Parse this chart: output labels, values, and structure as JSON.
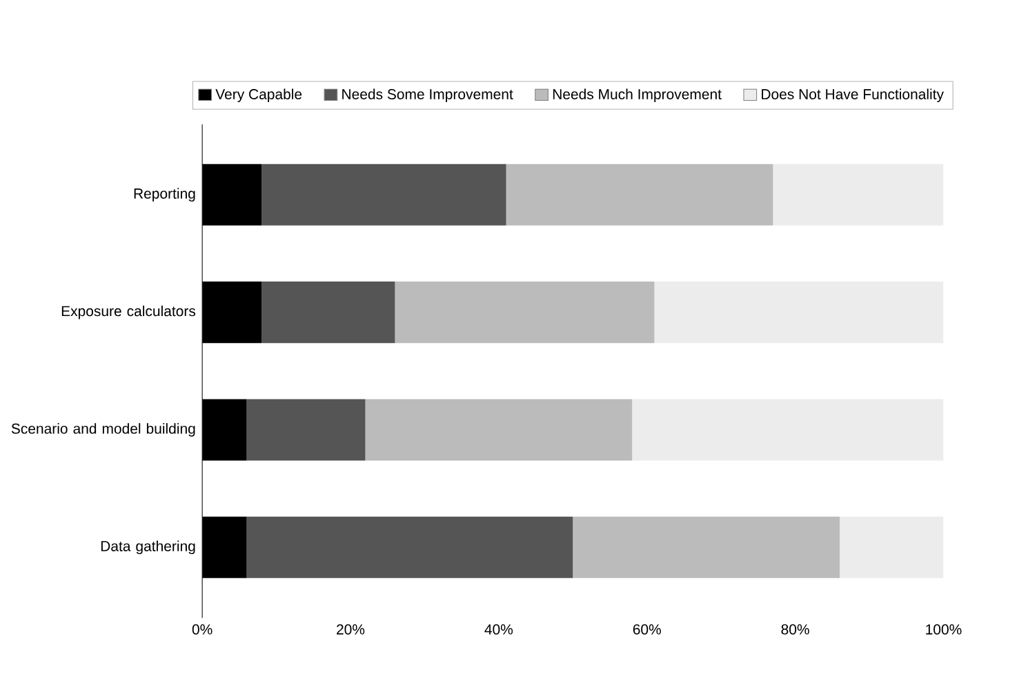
{
  "chart_data": {
    "type": "bar",
    "orientation": "horizontal",
    "stacked": true,
    "categories": [
      "Reporting",
      "Exposure calculators",
      "Scenario and model building",
      "Data gathering"
    ],
    "series": [
      {
        "name": "Very Capable",
        "color": "#000000",
        "values": [
          8,
          8,
          6,
          6
        ]
      },
      {
        "name": "Needs Some Improvement",
        "color": "#555555",
        "values": [
          33,
          18,
          16,
          44
        ]
      },
      {
        "name": "Needs Much Improvement",
        "color": "#bbbbbb",
        "values": [
          36,
          35,
          36,
          36
        ]
      },
      {
        "name": "Does Not Have Functionality",
        "color": "#ececec",
        "values": [
          23,
          39,
          42,
          14
        ]
      }
    ],
    "xlim": [
      0,
      100
    ],
    "xticks": [
      {
        "value": 0,
        "label": "0%"
      },
      {
        "value": 20,
        "label": "20%"
      },
      {
        "value": 40,
        "label": "40%"
      },
      {
        "value": 60,
        "label": "60%"
      },
      {
        "value": 80,
        "label": "80%"
      },
      {
        "value": 100,
        "label": "100%"
      }
    ],
    "legend": "top"
  }
}
